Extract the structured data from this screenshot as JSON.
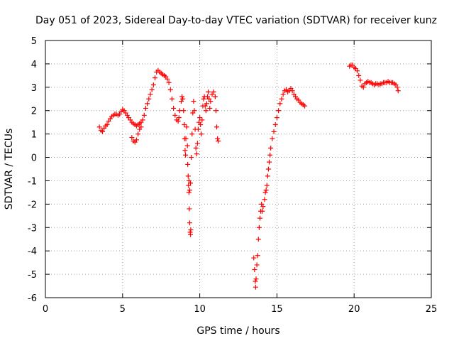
{
  "chart_data": {
    "type": "scatter",
    "title": "Day 051 of 2023, Sidereal Day-to-day VTEC variation (SDTVAR) for receiver kunz",
    "xlabel": "GPS time / hours",
    "ylabel": "SDTVAR / TECUs",
    "xlim": [
      0,
      25
    ],
    "ylim": [
      -6,
      5
    ],
    "xticks": [
      "0",
      "5",
      "10",
      "15",
      "20",
      "25"
    ],
    "yticks": [
      "-6",
      "-5",
      "-4",
      "-3",
      "-2",
      "-1",
      "0",
      "1",
      "2",
      "3",
      "4",
      "5"
    ],
    "grid": true,
    "marker": "plus",
    "color": "#ff0000",
    "series": [
      {
        "points": [
          [
            3.5,
            1.3
          ],
          [
            3.6,
            1.15
          ],
          [
            3.7,
            1.1
          ],
          [
            3.8,
            1.25
          ],
          [
            3.9,
            1.35
          ],
          [
            4.0,
            1.4
          ],
          [
            4.1,
            1.55
          ],
          [
            4.2,
            1.65
          ],
          [
            4.3,
            1.75
          ],
          [
            4.4,
            1.8
          ],
          [
            4.5,
            1.85
          ],
          [
            4.6,
            1.85
          ],
          [
            4.7,
            1.8
          ],
          [
            4.8,
            1.85
          ],
          [
            4.9,
            1.95
          ],
          [
            5.0,
            2.05
          ],
          [
            5.1,
            2.0
          ],
          [
            5.2,
            1.9
          ],
          [
            5.3,
            1.8
          ],
          [
            5.4,
            1.7
          ],
          [
            5.5,
            1.6
          ],
          [
            5.6,
            1.5
          ],
          [
            5.7,
            1.45
          ],
          [
            5.8,
            1.4
          ],
          [
            5.9,
            1.35
          ],
          [
            6.0,
            1.4
          ],
          [
            6.1,
            1.45
          ],
          [
            6.2,
            1.5
          ],
          [
            6.3,
            1.6
          ],
          [
            6.4,
            1.8
          ],
          [
            6.5,
            2.1
          ],
          [
            6.6,
            2.3
          ],
          [
            6.7,
            2.5
          ],
          [
            6.8,
            2.7
          ],
          [
            6.9,
            2.9
          ],
          [
            7.0,
            3.1
          ],
          [
            7.1,
            3.4
          ],
          [
            7.2,
            3.65
          ],
          [
            7.3,
            3.72
          ],
          [
            7.4,
            3.65
          ],
          [
            7.5,
            3.6
          ],
          [
            7.6,
            3.55
          ],
          [
            7.7,
            3.5
          ],
          [
            7.8,
            3.45
          ],
          [
            7.9,
            3.35
          ],
          [
            8.0,
            3.2
          ],
          [
            8.1,
            2.9
          ],
          [
            8.2,
            2.5
          ],
          [
            8.3,
            2.1
          ],
          [
            8.4,
            1.8
          ],
          [
            8.5,
            1.6
          ],
          [
            8.6,
            1.55
          ],
          [
            8.65,
            1.7
          ]
        ]
      },
      {
        "points": [
          [
            5.6,
            0.85
          ],
          [
            5.7,
            0.7
          ],
          [
            5.8,
            0.65
          ],
          [
            5.9,
            0.75
          ],
          [
            6.0,
            1.0
          ],
          [
            6.1,
            1.2
          ],
          [
            6.2,
            1.3
          ]
        ]
      },
      {
        "points": [
          [
            8.7,
            2.0
          ],
          [
            8.8,
            2.4
          ],
          [
            8.85,
            2.6
          ],
          [
            8.9,
            2.5
          ],
          [
            8.95,
            2.0
          ],
          [
            9.0,
            1.4
          ],
          [
            9.02,
            0.8
          ],
          [
            9.05,
            0.3
          ],
          [
            9.08,
            0.1
          ],
          [
            9.1,
            0.8
          ],
          [
            9.15,
            1.3
          ],
          [
            9.2,
            0.5
          ],
          [
            9.22,
            -0.3
          ],
          [
            9.25,
            -0.8
          ],
          [
            9.27,
            -1.2
          ],
          [
            9.3,
            -1.5
          ],
          [
            9.32,
            -2.2
          ],
          [
            9.35,
            -2.8
          ],
          [
            9.38,
            -3.2
          ],
          [
            9.4,
            -3.3
          ],
          [
            9.42,
            -3.1
          ],
          [
            9.3,
            -1.0
          ],
          [
            9.35,
            -1.4
          ],
          [
            9.4,
            -1.1
          ],
          [
            9.45,
            0.0
          ],
          [
            9.5,
            1.0
          ],
          [
            9.55,
            1.9
          ],
          [
            9.6,
            2.4
          ],
          [
            9.65,
            2.0
          ],
          [
            9.7,
            1.2
          ],
          [
            9.75,
            0.4
          ],
          [
            9.8,
            0.15
          ],
          [
            9.85,
            0.6
          ],
          [
            9.9,
            1.2
          ],
          [
            9.95,
            1.5
          ],
          [
            10.0,
            1.7
          ],
          [
            10.05,
            1.4
          ],
          [
            10.1,
            1.0
          ],
          [
            10.15,
            1.6
          ],
          [
            10.2,
            2.2
          ],
          [
            10.25,
            2.5
          ],
          [
            10.3,
            2.6
          ],
          [
            10.35,
            2.2
          ],
          [
            10.4,
            2.0
          ],
          [
            10.45,
            2.3
          ],
          [
            10.5,
            2.6
          ],
          [
            10.55,
            2.8
          ],
          [
            10.6,
            2.5
          ],
          [
            10.65,
            2.1
          ],
          [
            10.7,
            2.4
          ],
          [
            10.8,
            2.7
          ],
          [
            10.9,
            2.8
          ],
          [
            11.0,
            2.6
          ],
          [
            11.05,
            2.0
          ],
          [
            11.1,
            1.3
          ],
          [
            11.15,
            0.8
          ],
          [
            11.2,
            0.7
          ]
        ]
      },
      {
        "points": [
          [
            13.5,
            -4.3
          ],
          [
            13.55,
            -4.8
          ],
          [
            13.6,
            -5.3
          ],
          [
            13.62,
            -5.55
          ],
          [
            13.65,
            -5.2
          ],
          [
            13.7,
            -4.6
          ],
          [
            13.75,
            -4.2
          ],
          [
            13.8,
            -3.5
          ],
          [
            13.85,
            -3.0
          ],
          [
            13.9,
            -2.6
          ],
          [
            13.95,
            -2.3
          ],
          [
            14.0,
            -2.0
          ],
          [
            14.05,
            -2.3
          ],
          [
            14.1,
            -2.1
          ],
          [
            14.2,
            -1.8
          ],
          [
            14.25,
            -1.5
          ],
          [
            14.3,
            -1.4
          ],
          [
            14.35,
            -1.2
          ],
          [
            14.4,
            -0.8
          ],
          [
            14.45,
            -0.5
          ],
          [
            14.5,
            -0.2
          ],
          [
            14.55,
            0.1
          ],
          [
            14.6,
            0.4
          ],
          [
            14.7,
            0.8
          ],
          [
            14.8,
            1.1
          ],
          [
            14.9,
            1.4
          ],
          [
            15.0,
            1.7
          ],
          [
            15.1,
            2.0
          ],
          [
            15.2,
            2.3
          ],
          [
            15.3,
            2.5
          ],
          [
            15.4,
            2.7
          ],
          [
            15.5,
            2.85
          ],
          [
            15.6,
            2.9
          ],
          [
            15.7,
            2.8
          ],
          [
            15.8,
            2.85
          ],
          [
            15.9,
            2.95
          ],
          [
            16.0,
            2.85
          ],
          [
            16.1,
            2.7
          ],
          [
            16.2,
            2.6
          ],
          [
            16.3,
            2.5
          ],
          [
            16.4,
            2.45
          ],
          [
            16.5,
            2.35
          ],
          [
            16.6,
            2.3
          ],
          [
            16.7,
            2.25
          ],
          [
            16.8,
            2.2
          ]
        ]
      },
      {
        "points": [
          [
            19.7,
            3.9
          ],
          [
            19.8,
            3.95
          ],
          [
            19.9,
            3.95
          ],
          [
            20.0,
            3.85
          ],
          [
            20.1,
            3.8
          ],
          [
            20.2,
            3.7
          ],
          [
            20.3,
            3.5
          ],
          [
            20.4,
            3.3
          ],
          [
            20.5,
            3.05
          ],
          [
            20.6,
            3.0
          ],
          [
            20.7,
            3.15
          ],
          [
            20.8,
            3.2
          ],
          [
            20.9,
            3.25
          ],
          [
            21.0,
            3.2
          ],
          [
            21.1,
            3.2
          ],
          [
            21.2,
            3.15
          ],
          [
            21.3,
            3.1
          ],
          [
            21.4,
            3.15
          ],
          [
            21.5,
            3.15
          ],
          [
            21.6,
            3.1
          ],
          [
            21.7,
            3.15
          ],
          [
            21.8,
            3.15
          ],
          [
            21.9,
            3.2
          ],
          [
            22.0,
            3.2
          ],
          [
            22.1,
            3.2
          ],
          [
            22.2,
            3.25
          ],
          [
            22.3,
            3.2
          ],
          [
            22.4,
            3.2
          ],
          [
            22.5,
            3.2
          ],
          [
            22.6,
            3.15
          ],
          [
            22.7,
            3.1
          ],
          [
            22.8,
            3.0
          ],
          [
            22.85,
            2.85
          ]
        ]
      }
    ]
  }
}
